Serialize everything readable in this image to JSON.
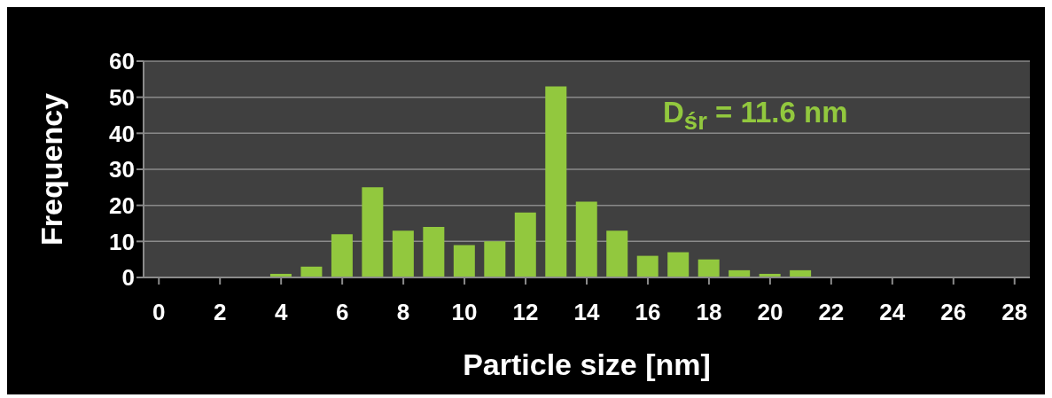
{
  "chart_data": {
    "type": "bar",
    "xlabel": "Particle size [nm]",
    "ylabel": "Frequency",
    "x": [
      0,
      1,
      2,
      3,
      4,
      5,
      6,
      7,
      8,
      9,
      10,
      11,
      12,
      13,
      14,
      15,
      16,
      17,
      18,
      19,
      20,
      21,
      22,
      23,
      24,
      25,
      26,
      27,
      28
    ],
    "values": [
      0,
      0,
      0,
      0,
      1,
      3,
      12,
      25,
      13,
      14,
      9,
      10,
      18,
      53,
      21,
      13,
      6,
      7,
      5,
      2,
      1,
      2,
      0,
      0,
      0,
      0,
      0,
      0,
      0
    ],
    "color": "#92c83e",
    "xlim": [
      -0.5,
      28.5
    ],
    "xticks": [
      0,
      2,
      4,
      6,
      8,
      10,
      12,
      14,
      16,
      18,
      20,
      22,
      24,
      26,
      28
    ],
    "ylim": [
      0,
      60
    ],
    "yticks": [
      0,
      10,
      20,
      30,
      40,
      50,
      60
    ],
    "grid": "y",
    "annotations": [
      "D$_{śr}$ = 11.6 nm"
    ]
  }
}
